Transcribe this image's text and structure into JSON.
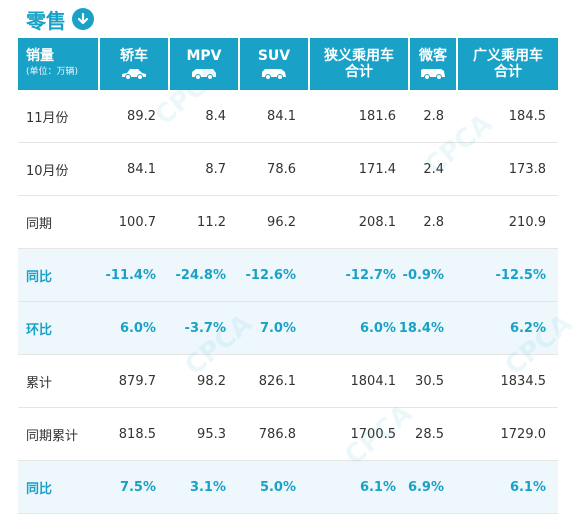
{
  "title": "零售",
  "watermark": "CPCA",
  "header": {
    "first_label": "销量",
    "first_sub": "(单位：万辆)",
    "columns": [
      "轿车",
      "MPV",
      "SUV",
      "狭义乘用车\n合计",
      "微客",
      "广义乘用车\n合计"
    ],
    "icons": [
      "sedan-icon",
      "mpv-icon",
      "suv-icon",
      "",
      "microvan-icon",
      ""
    ]
  },
  "rows": [
    {
      "label": "11月份",
      "values": [
        "89.2",
        "8.4",
        "84.1",
        "181.6",
        "2.8",
        "184.5"
      ],
      "highlight": false
    },
    {
      "label": "10月份",
      "values": [
        "84.1",
        "8.7",
        "78.6",
        "171.4",
        "2.4",
        "173.8"
      ],
      "highlight": false
    },
    {
      "label": "同期",
      "values": [
        "100.7",
        "11.2",
        "96.2",
        "208.1",
        "2.8",
        "210.9"
      ],
      "highlight": false
    },
    {
      "label": "同比",
      "values": [
        "-11.4%",
        "-24.8%",
        "-12.6%",
        "-12.7%",
        "-0.9%",
        "-12.5%"
      ],
      "highlight": true
    },
    {
      "label": "环比",
      "values": [
        "6.0%",
        "-3.7%",
        "7.0%",
        "6.0%",
        "18.4%",
        "6.2%"
      ],
      "highlight": true
    },
    {
      "label": "累计",
      "values": [
        "879.7",
        "98.2",
        "826.1",
        "1804.1",
        "30.5",
        "1834.5"
      ],
      "highlight": false
    },
    {
      "label": "同期累计",
      "values": [
        "818.5",
        "95.3",
        "786.8",
        "1700.5",
        "28.5",
        "1729.0"
      ],
      "highlight": false
    },
    {
      "label": "同比",
      "values": [
        "7.5%",
        "3.1%",
        "5.0%",
        "6.1%",
        "6.9%",
        "6.1%"
      ],
      "highlight": true
    }
  ],
  "colors": {
    "accent": "#1aa1c7",
    "highlight_bg": "#eef8fc"
  }
}
